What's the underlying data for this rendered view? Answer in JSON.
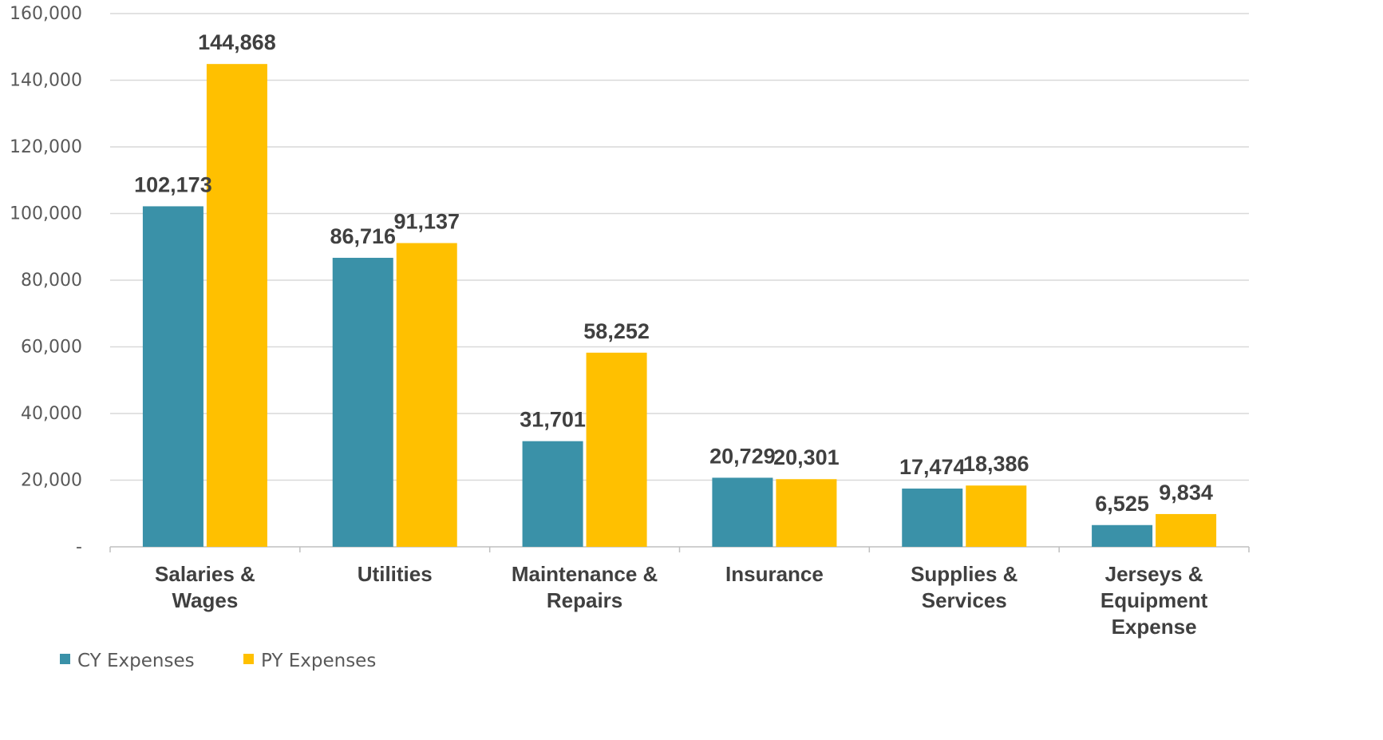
{
  "chart_data": {
    "type": "bar",
    "categories": [
      [
        "Salaries &",
        "Wages"
      ],
      [
        "Utilities"
      ],
      [
        "Maintenance &",
        "Repairs"
      ],
      [
        "Insurance"
      ],
      [
        "Supplies &",
        "Services"
      ],
      [
        "Jerseys &",
        "Equipment",
        "Expense"
      ]
    ],
    "series": [
      {
        "name": "CY Expenses",
        "color": "#3A91A8",
        "values": [
          102173,
          86716,
          31701,
          20729,
          17474,
          6525
        ]
      },
      {
        "name": "PY Expenses",
        "color": "#FFC000",
        "values": [
          144868,
          91137,
          58252,
          20301,
          18386,
          9834
        ]
      }
    ],
    "data_labels": [
      [
        "102,173",
        "86,716",
        "31,701",
        "20,729",
        "17,474",
        "6,525"
      ],
      [
        "144,868",
        "91,137",
        "58,252",
        "20,301",
        "18,386",
        "9,834"
      ]
    ],
    "y_ticks": [
      0,
      20000,
      40000,
      60000,
      80000,
      100000,
      120000,
      140000,
      160000
    ],
    "y_tick_labels": [
      "-",
      "20,000",
      "40,000",
      "60,000",
      "80,000",
      "100,000",
      "120,000",
      "140,000",
      "160,000"
    ],
    "ylim": [
      0,
      160000
    ],
    "grid": true,
    "legend_position": "bottom-left",
    "title": "",
    "xlabel": "",
    "ylabel": ""
  }
}
